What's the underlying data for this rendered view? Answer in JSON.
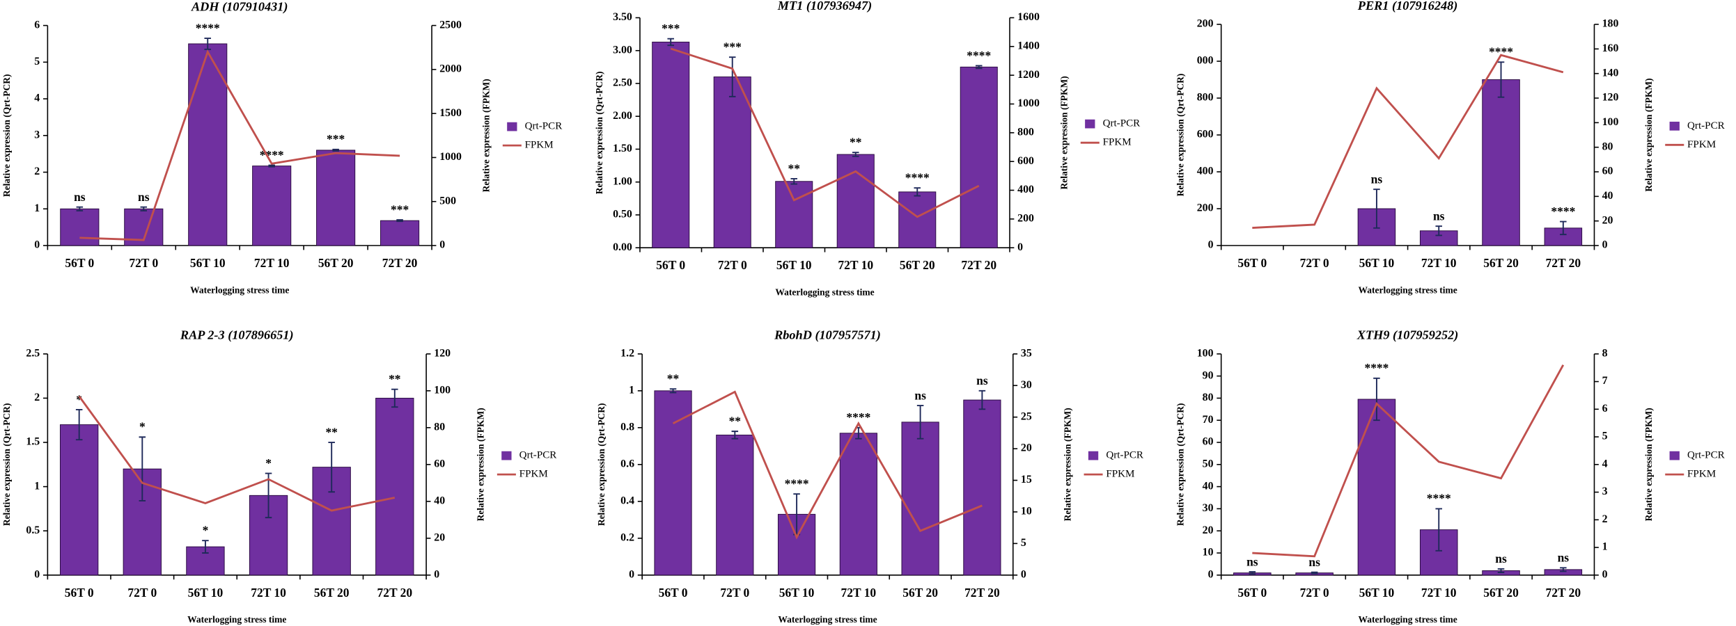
{
  "chart_data": [
    {
      "type": "combo",
      "title": "ADH (107910431)",
      "xlabel": "Waterlogging stress time",
      "ylabel": "Relative expression (Qrt-PCR)",
      "y2label": "Relative expression (FPKM)",
      "categories": [
        "56T 0",
        "72T 0",
        "56T 10",
        "72T 10",
        "56T 20",
        "72T 20"
      ],
      "ylim": [
        0,
        6
      ],
      "yticks": [
        0,
        1,
        2,
        3,
        4,
        5,
        6
      ],
      "y2lim": [
        0,
        2500
      ],
      "y2ticks": [
        0,
        500,
        1000,
        1500,
        2000,
        2500
      ],
      "annotations": [
        "ns",
        "ns",
        "****",
        "****",
        "***",
        "***"
      ],
      "series": [
        {
          "name": "Qrt-PCR",
          "type": "bar",
          "color": "#7030a0",
          "values": [
            1.0,
            1.0,
            5.5,
            2.17,
            2.6,
            0.68
          ],
          "errors": [
            0.05,
            0.05,
            0.15,
            0.02,
            0.02,
            0.02
          ]
        },
        {
          "name": "FPKM",
          "type": "line",
          "axis": "y2",
          "color": "#c0504d",
          "values": [
            88,
            63,
            2200,
            930,
            1050,
            1020
          ]
        }
      ]
    },
    {
      "type": "combo",
      "title": "MT1 (107936947)",
      "xlabel": "Waterlogging stress time",
      "ylabel": "Relative expression (Qrt-PCR)",
      "y2label": "Relative expression (FPKM)",
      "categories": [
        "56T 0",
        "72T 0",
        "56T 10",
        "72T 10",
        "56T 20",
        "72T 20"
      ],
      "ylim": [
        0,
        3.5
      ],
      "yticks": [
        {
          "value": 0,
          "label": "0.00"
        },
        {
          "value": 0.5,
          "label": "0.50"
        },
        {
          "value": 1,
          "label": "1.00"
        },
        {
          "value": 1.5,
          "label": "1.50"
        },
        {
          "value": 2,
          "label": "2.00"
        },
        {
          "value": 2.5,
          "label": "2.50"
        },
        {
          "value": 3,
          "label": "3.00"
        },
        {
          "value": 3.5,
          "label": "3.50"
        }
      ],
      "y2lim": [
        0,
        1600
      ],
      "y2ticks": [
        0,
        200,
        400,
        600,
        800,
        1000,
        1200,
        1400,
        1600
      ],
      "annotations": [
        "***",
        "***",
        "**",
        "**",
        "****",
        "****"
      ],
      "series": [
        {
          "name": "Qrt-PCR",
          "type": "bar",
          "color": "#7030a0",
          "values": [
            3.13,
            2.6,
            1.01,
            1.42,
            0.85,
            2.75
          ],
          "errors": [
            0.05,
            0.3,
            0.04,
            0.03,
            0.06,
            0.02
          ]
        },
        {
          "name": "FPKM",
          "type": "line",
          "axis": "y2",
          "color": "#c0504d",
          "values": [
            1385,
            1246,
            331,
            531,
            215,
            431
          ]
        }
      ]
    },
    {
      "type": "combo",
      "title": "PER1 (107916248)",
      "xlabel": "Waterlogging stress time",
      "ylabel": "Relative expression (Qrt-PCR)",
      "y2label": "Relative expression (FPKM)",
      "categories": [
        "56T 0",
        "72T 0",
        "56T 10",
        "72T 10",
        "56T 20",
        "72T 20"
      ],
      "ylim": [
        0,
        1200
      ],
      "yticks": [
        0,
        200,
        400,
        600,
        800,
        {
          "value": 1000,
          "label": "000"
        },
        {
          "value": 1200,
          "label": "200"
        }
      ],
      "y2lim": [
        0,
        180
      ],
      "y2ticks": [
        0,
        20,
        40,
        60,
        80,
        100,
        120,
        140,
        160,
        180
      ],
      "annotations": [
        null,
        null,
        "ns",
        "ns",
        "****",
        "****"
      ],
      "series": [
        {
          "name": "Qrt-PCR",
          "type": "bar",
          "color": "#7030a0",
          "values": [
            0,
            0,
            200,
            80,
            900,
            95
          ],
          "errors": [
            0,
            0,
            105,
            25,
            95,
            35
          ]
        },
        {
          "name": "FPKM",
          "type": "line",
          "axis": "y2",
          "color": "#c0504d",
          "values": [
            14.4,
            17,
            128,
            71,
            155,
            141
          ]
        }
      ]
    },
    {
      "type": "combo",
      "title": "RAP 2-3 (107896651)",
      "xlabel": "Waterlogging stress time",
      "ylabel": "Relative expression (Qrt-PCR)",
      "y2label": "Relative expression (FPKM)",
      "categories": [
        "56T 0",
        "72T 0",
        "56T 10",
        "72T 10",
        "56T 20",
        "72T 20"
      ],
      "ylim": [
        0,
        2.5
      ],
      "yticks": [
        0,
        0.5,
        1,
        1.5,
        2,
        2.5
      ],
      "y2lim": [
        0,
        120
      ],
      "y2ticks": [
        0,
        20,
        40,
        60,
        80,
        100,
        120
      ],
      "annotations": [
        "*",
        "*",
        "*",
        "*",
        "**",
        "**"
      ],
      "series": [
        {
          "name": "Qrt-PCR",
          "type": "bar",
          "color": "#7030a0",
          "values": [
            1.7,
            1.2,
            0.32,
            0.9,
            1.22,
            2.0
          ],
          "errors": [
            0.17,
            0.36,
            0.07,
            0.25,
            0.28,
            0.1
          ]
        },
        {
          "name": "FPKM",
          "type": "line",
          "axis": "y2",
          "color": "#c0504d",
          "values": [
            97,
            50,
            39,
            52,
            35,
            42
          ]
        }
      ]
    },
    {
      "type": "combo",
      "title": "RbohD (107957571)",
      "xlabel": "Waterlogging stress time",
      "ylabel": "Relative expression (Qrt-PCR)",
      "y2label": "Relative expression (FPKM)",
      "categories": [
        "56T 0",
        "72T 0",
        "56T 10",
        "72T 10",
        "56T 20",
        "72T 20"
      ],
      "ylim": [
        0,
        1.2
      ],
      "yticks": [
        0,
        0.2,
        0.4,
        0.6,
        0.8,
        1,
        1.2
      ],
      "y2lim": [
        0,
        35
      ],
      "y2ticks": [
        0,
        5,
        10,
        15,
        20,
        25,
        30,
        35
      ],
      "annotations": [
        "**",
        "**",
        "****",
        "****",
        "ns",
        "ns"
      ],
      "series": [
        {
          "name": "Qrt-PCR",
          "type": "bar",
          "color": "#7030a0",
          "values": [
            1.0,
            0.76,
            0.33,
            0.77,
            0.83,
            0.95
          ],
          "errors": [
            0.01,
            0.02,
            0.11,
            0.03,
            0.09,
            0.05
          ]
        },
        {
          "name": "FPKM",
          "type": "line",
          "axis": "y2",
          "color": "#c0504d",
          "values": [
            24,
            29,
            6,
            24,
            7,
            11
          ]
        }
      ]
    },
    {
      "type": "combo",
      "title": "XTH9 (107959252)",
      "xlabel": "Waterlogging stress time",
      "ylabel": "Relative expression (Qrt-PCR)",
      "y2label": "Relative expression (FPKM)",
      "categories": [
        "56T 0",
        "72T 0",
        "56T 10",
        "72T 10",
        "56T 20",
        "72T 20"
      ],
      "ylim": [
        0,
        100
      ],
      "yticks": [
        0,
        10,
        20,
        30,
        40,
        50,
        60,
        70,
        80,
        90,
        100
      ],
      "y2lim": [
        0,
        8
      ],
      "y2ticks": [
        0,
        1,
        2,
        3,
        4,
        5,
        6,
        7,
        8
      ],
      "annotations": [
        "ns",
        "ns",
        "****",
        "****",
        "ns",
        "ns"
      ],
      "series": [
        {
          "name": "Qrt-PCR",
          "type": "bar",
          "color": "#7030a0",
          "values": [
            1,
            1,
            79.5,
            20.5,
            2,
            2.5
          ],
          "errors": [
            0.5,
            0.3,
            9.5,
            9.5,
            0.8,
            0.8
          ]
        },
        {
          "name": "FPKM",
          "type": "line",
          "axis": "y2",
          "color": "#c0504d",
          "values": [
            0.8,
            0.68,
            6.2,
            4.1,
            3.5,
            7.6
          ]
        }
      ]
    }
  ]
}
